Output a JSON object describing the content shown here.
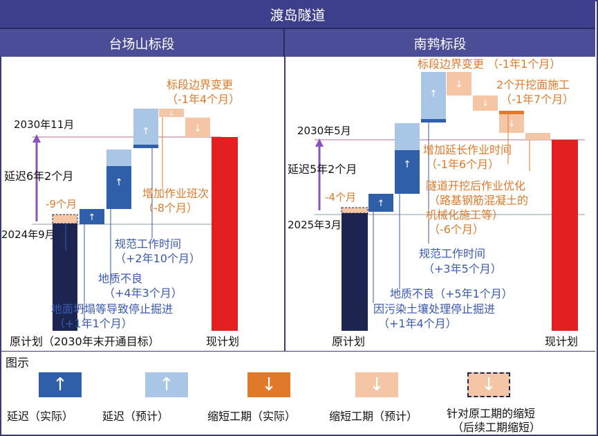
{
  "title": "渡岛隧道",
  "sections": [
    {
      "name": "台场山标段"
    },
    {
      "name": "南鹁标段"
    }
  ],
  "chart_data": [
    {
      "type": "waterfall",
      "section": "台场山标段",
      "baseline_label": "2024年9月",
      "target_label": "2030年11月",
      "delay_label": "延迟6年2个月",
      "start_label": "原计划（2030年末开通目标）",
      "end_label": "现计划",
      "steps": [
        {
          "label": "-9个月",
          "kind": "shorten_original",
          "months": -9
        },
        {
          "label": "地面坍塌等导致停止掘进\n（+1年1个月）",
          "kind": "delay_actual",
          "months": 13
        },
        {
          "label": "地质不良\n（+4年3个月）",
          "kind": "delay_actual",
          "months": 51
        },
        {
          "label": "规范工作时间\n（+2年10个月）",
          "kind": "delay_mixed",
          "months": 34
        },
        {
          "label": "增加作业班次\n（-8个月）",
          "kind": "shorten_forecast",
          "months": -8
        },
        {
          "label": "标段边界变更\n（-1年4个月）",
          "kind": "shorten_forecast",
          "months": -16
        }
      ]
    },
    {
      "type": "waterfall",
      "section": "南鹁标段",
      "baseline_label": "2025年3月",
      "target_label": "2030年5月",
      "delay_label": "延迟5年2个月",
      "start_label": "原计划",
      "end_label": "现计划",
      "steps": [
        {
          "label": "-4个月",
          "kind": "shorten_original",
          "months": -4
        },
        {
          "label": "因污染土壤处理停止掘进\n（+1年4个月）",
          "kind": "delay_actual",
          "months": 16
        },
        {
          "label": "地质不良（+5年1个月）",
          "kind": "delay_actual",
          "months": 61
        },
        {
          "label": "规范工作时间\n（+3年5个月）",
          "kind": "delay_forecast",
          "months": 41
        },
        {
          "label": "标段边界变更 （-1年1个月）",
          "kind": "shorten_forecast",
          "months": -13
        },
        {
          "label": "2个开挖面施工\n（-1年7个月）",
          "kind": "shorten_mixed",
          "months": -19
        },
        {
          "label": "增加延长作业时间\n（-1年6个月）",
          "kind": "shorten_forecast",
          "months": -18
        },
        {
          "label": "隧道开挖后作业优化\n（路基钢筋混凝土的\n机械化施工等）\n（-6个月）",
          "kind": "shorten_forecast",
          "months": -6
        }
      ]
    }
  ],
  "text": {
    "l_step1": "-9个月",
    "l_step2a": "地面坍塌等导致停止掘进",
    "l_step2b": "（+1年1个月）",
    "l_step3a": "地质不良",
    "l_step3b": "（+4年3个月）",
    "l_step4a": "规范工作时间",
    "l_step4b": "（+2年10个月）",
    "l_step5a": "增加作业班次",
    "l_step5b": "（-8个月）",
    "l_step6a": "标段边界变更",
    "l_step6b": "（-1年4个月）",
    "r_step1": "-4个月",
    "r_step2a": "因污染土壤处理停止掘进",
    "r_step2b": "（+1年4个月）",
    "r_step3": "地质不良（+5年1个月）",
    "r_step4a": "规范工作时间",
    "r_step4b": "（+3年5个月）",
    "r_step5": "标段边界变更 （-1年1个月）",
    "r_step6a": "2个开挖面施工",
    "r_step6b": "（-1年7个月）",
    "r_step7a": "增加延长作业时间",
    "r_step7b": "（-1年6个月）",
    "r_step8a": "隧道开挖后作业优化",
    "r_step8b": "（路基钢筋混凝土的",
    "r_step8c": "机械化施工等）",
    "r_step8d": "（-6个月）"
  },
  "legend": {
    "title": "图示",
    "items": [
      {
        "label": "延迟（实际）",
        "color": "#2f5fa8"
      },
      {
        "label": "延迟（预计）",
        "color": "#a9c6e6"
      },
      {
        "label": "缩短工期（实际）",
        "color": "#e07a2a"
      },
      {
        "label": "缩短工期（预计）",
        "color": "#f4c6a6"
      },
      {
        "label": "针对原工期的缩短",
        "label2": "（后续工期缩短）",
        "color": "#f4c6a6"
      }
    ]
  },
  "colors": {
    "original": "#1b2550",
    "current": "#e41f1f",
    "delay_actual": "#2f5fa8",
    "delay_forecast": "#a9c6e6",
    "shorten_actual": "#e07a2a",
    "shorten_forecast": "#f4c6a6",
    "label_blue": "#3a5ab0",
    "label_orange": "#e07a2a",
    "purple": "#8a55b8"
  }
}
